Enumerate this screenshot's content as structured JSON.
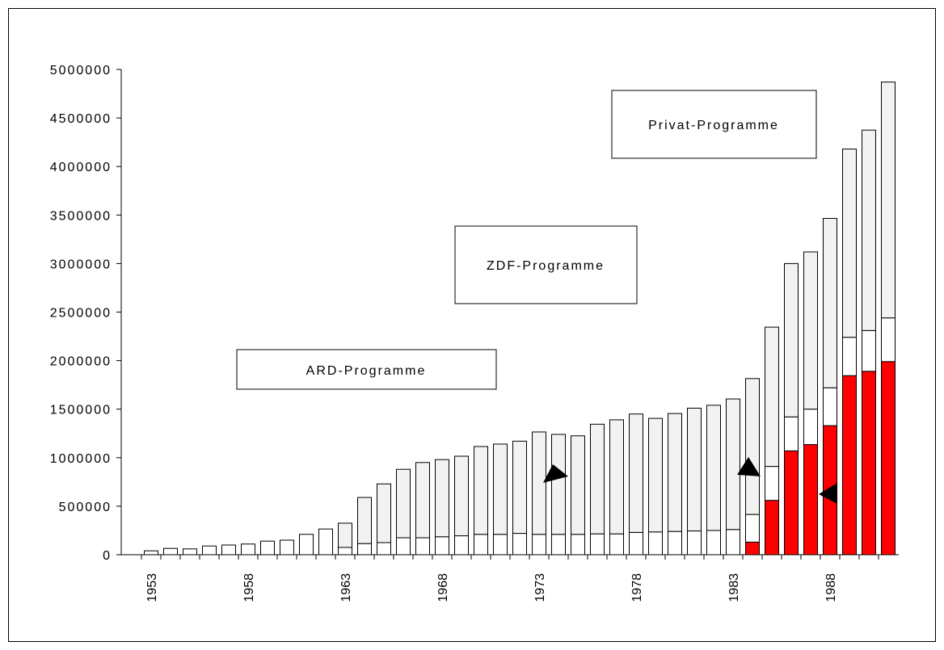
{
  "chart_data": {
    "type": "stacked-bar",
    "categories": [
      "1953",
      null,
      null,
      null,
      null,
      "1958",
      null,
      null,
      null,
      null,
      "1963",
      null,
      null,
      null,
      null,
      "1968",
      null,
      null,
      null,
      null,
      "1973",
      null,
      null,
      null,
      null,
      "1978",
      null,
      null,
      null,
      null,
      "1983",
      null,
      null,
      null,
      null,
      "1988",
      null,
      null,
      null
    ],
    "series": [
      {
        "name": "Privat-Programme",
        "color": "#ff0000",
        "values": [
          0,
          0,
          0,
          0,
          0,
          0,
          0,
          0,
          0,
          0,
          0,
          0,
          0,
          0,
          0,
          0,
          0,
          0,
          0,
          0,
          0,
          0,
          0,
          0,
          0,
          0,
          0,
          0,
          0,
          0,
          0,
          130000,
          560000,
          1070000,
          1135000,
          1330000,
          1845000,
          1890000,
          1990000
        ]
      },
      {
        "name": "ARD-Programme",
        "color": "#ffffff",
        "values": [
          40000,
          65000,
          60000,
          90000,
          100000,
          110000,
          140000,
          150000,
          210000,
          265000,
          75000,
          115000,
          125000,
          175000,
          175000,
          185000,
          195000,
          210000,
          210000,
          220000,
          210000,
          210000,
          210000,
          215000,
          215000,
          230000,
          235000,
          240000,
          245000,
          250000,
          260000,
          285000,
          350000,
          350000,
          365000,
          390000,
          395000,
          420000,
          450000
        ]
      },
      {
        "name": "ZDF-Programme",
        "color": "#f2f2f2",
        "values": [
          0,
          0,
          0,
          0,
          0,
          0,
          0,
          0,
          0,
          0,
          250000,
          475000,
          605000,
          705000,
          775000,
          795000,
          820000,
          905000,
          930000,
          950000,
          1055000,
          1030000,
          1015000,
          1130000,
          1175000,
          1220000,
          1170000,
          1215000,
          1265000,
          1290000,
          1345000,
          1400000,
          1435000,
          1580000,
          1620000,
          1745000,
          1940000,
          2065000,
          2430000
        ]
      }
    ],
    "ylim": [
      0,
      5000000
    ],
    "yticks": [
      0,
      500000,
      1000000,
      1500000,
      2000000,
      2500000,
      3000000,
      3500000,
      4000000,
      4500000,
      5000000
    ]
  }
}
